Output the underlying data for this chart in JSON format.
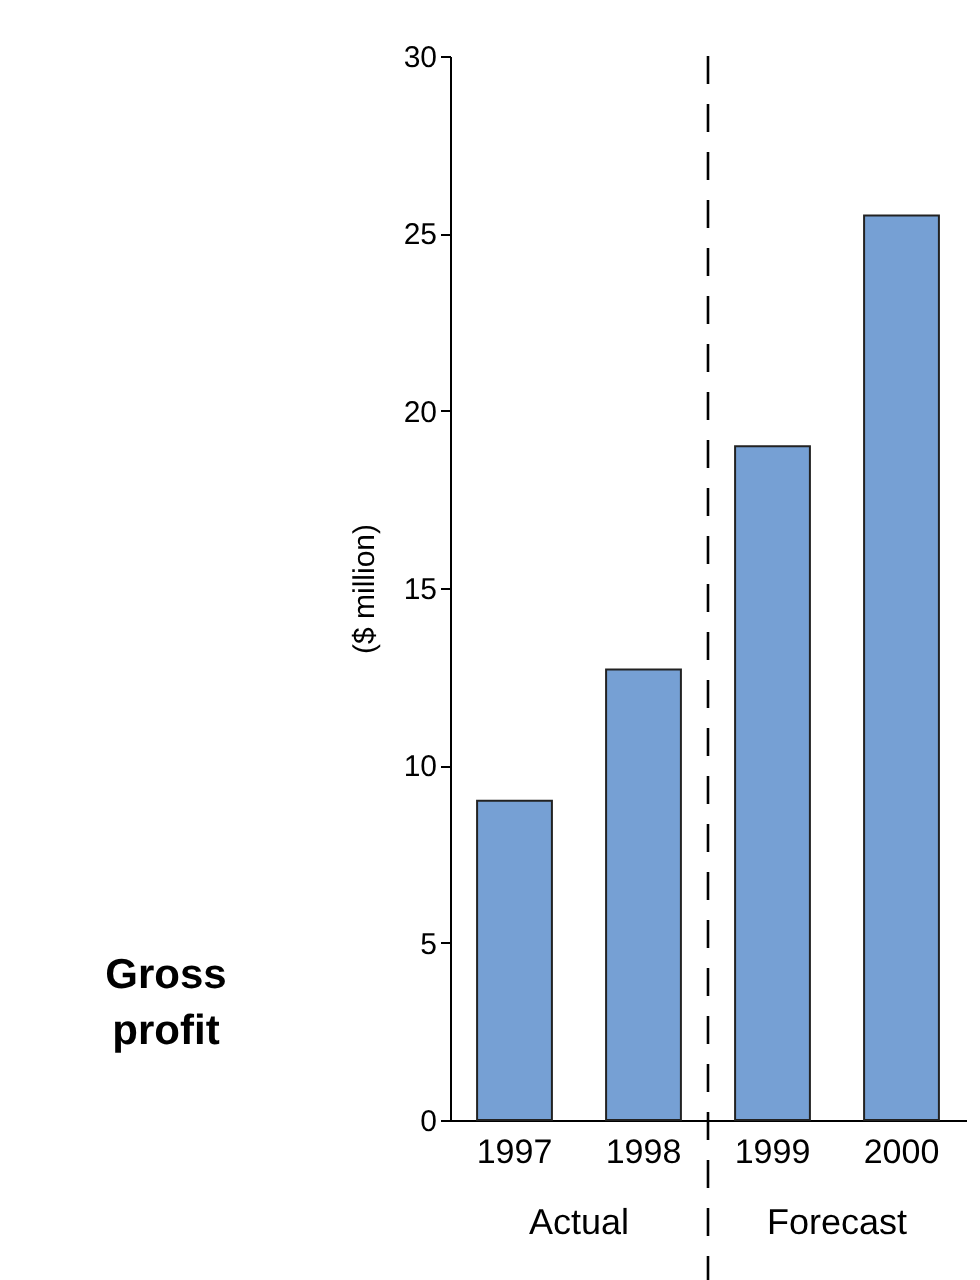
{
  "chart_data": {
    "type": "bar",
    "categories": [
      "1997",
      "1998",
      "1999",
      "2000"
    ],
    "values": [
      9,
      12.7,
      19,
      25.5
    ],
    "color": "#76a0d4",
    "ylabel": "($ million)",
    "ylim": [
      0,
      30
    ],
    "yticks": [
      0,
      5,
      10,
      15,
      20,
      25,
      30
    ],
    "grid": false,
    "annotations": [
      "Actual",
      "Forecast",
      "Gross profit"
    ]
  }
}
